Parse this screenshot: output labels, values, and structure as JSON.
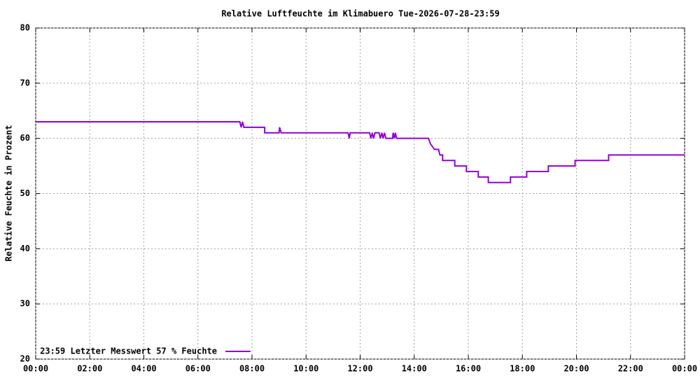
{
  "chart_data": {
    "type": "line",
    "title": "Relative Luftfeuchte im Klimabuero  Tue-2026-07-28-23:59",
    "y_label": "Relative Feuchte in Prozent",
    "xlim": [
      0,
      24
    ],
    "xticks": [
      {
        "value": 0,
        "label": "00:00"
      },
      {
        "value": 2,
        "label": "02:00"
      },
      {
        "value": 4,
        "label": "04:00"
      },
      {
        "value": 6,
        "label": "06:00"
      },
      {
        "value": 8,
        "label": "08:00"
      },
      {
        "value": 10,
        "label": "10:00"
      },
      {
        "value": 12,
        "label": "12:00"
      },
      {
        "value": 14,
        "label": "14:00"
      },
      {
        "value": 16,
        "label": "16:00"
      },
      {
        "value": 18,
        "label": "18:00"
      },
      {
        "value": 20,
        "label": "20:00"
      },
      {
        "value": 22,
        "label": "22:00"
      },
      {
        "value": 24,
        "label": "00:00"
      }
    ],
    "ylim": [
      20,
      80
    ],
    "yticks": [
      20,
      30,
      40,
      50,
      60,
      70,
      80
    ],
    "grid": true,
    "legend": "bottom-left",
    "x": [
      0,
      7.55,
      7.6,
      7.65,
      7.7,
      8.47,
      8.47,
      9.0,
      9.02,
      9.08,
      11.55,
      11.6,
      11.63,
      12.35,
      12.4,
      12.45,
      12.5,
      12.55,
      12.7,
      12.75,
      12.8,
      12.85,
      12.9,
      12.95,
      13.2,
      13.22,
      13.27,
      13.3,
      13.35,
      14.53,
      14.6,
      14.75,
      14.9,
      14.95,
      15.05,
      15.05,
      15.5,
      15.5,
      15.93,
      15.93,
      16.37,
      16.37,
      16.74,
      16.74,
      17.56,
      17.56,
      18.16,
      18.16,
      18.96,
      18.96,
      19.95,
      19.95,
      21.19,
      21.19,
      24
    ],
    "series": [
      {
        "name": "23:59 Letzter Messwert 57 % Feuchte",
        "color": "#9400d3",
        "values": [
          63,
          63,
          62,
          63,
          62,
          62,
          61,
          61,
          62,
          61,
          61,
          60,
          61,
          61,
          60,
          61,
          60,
          61,
          61,
          60,
          61,
          60,
          61,
          60,
          60,
          61,
          60,
          61,
          60,
          60,
          59,
          58,
          58,
          57,
          57,
          56,
          56,
          55,
          55,
          54,
          54,
          53,
          53,
          52,
          52,
          53,
          53,
          54,
          54,
          55,
          55,
          56,
          56,
          57,
          57
        ]
      }
    ]
  }
}
